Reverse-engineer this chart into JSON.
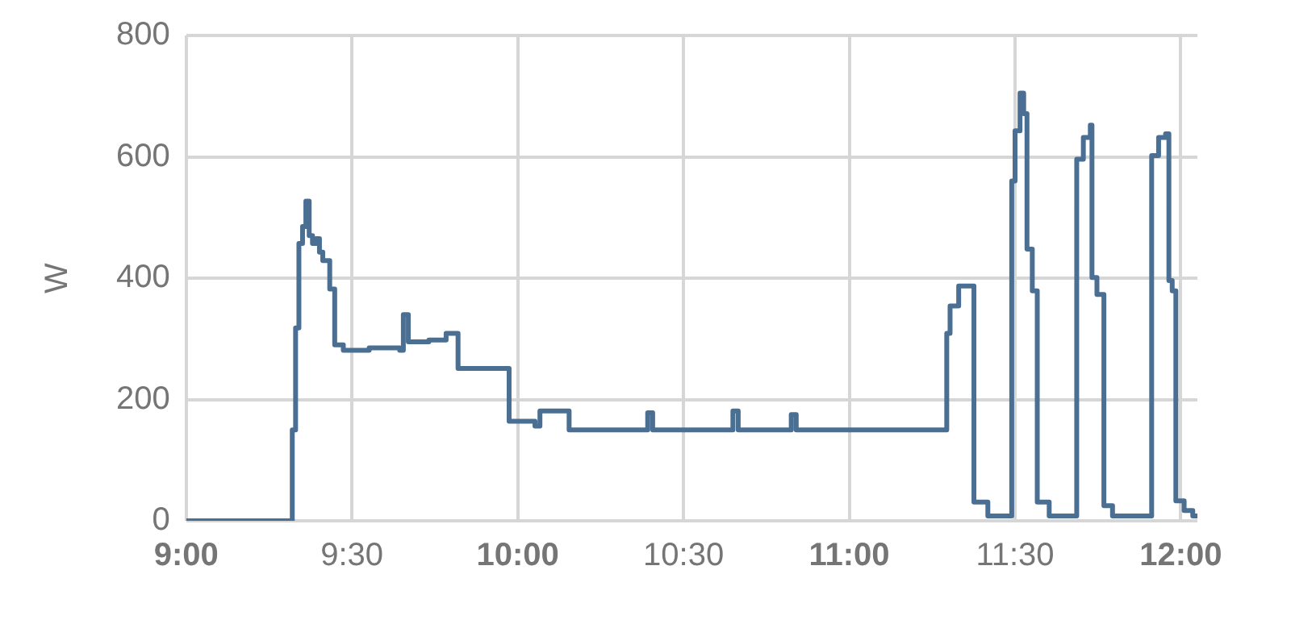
{
  "chart_data": {
    "type": "step",
    "ylabel": "W",
    "xlim": [
      9,
      12.05
    ],
    "ylim": [
      0,
      800
    ],
    "xticks": [
      {
        "value": 9,
        "label": "9:00"
      },
      {
        "value": 9.5,
        "label": "9:30"
      },
      {
        "value": 10,
        "label": "10:00"
      },
      {
        "value": 10.5,
        "label": "10:30"
      },
      {
        "value": 11,
        "label": "11:00"
      },
      {
        "value": 11.5,
        "label": "11:30"
      },
      {
        "value": 12,
        "label": "12:00"
      }
    ],
    "yticks": [
      0,
      200,
      400,
      600,
      800
    ],
    "grid": true,
    "legend": false,
    "marker": "none",
    "line_style": "solid",
    "x": [
      9.0,
      9.314,
      9.32,
      9.33,
      9.34,
      9.351,
      9.361,
      9.371,
      9.381,
      9.392,
      9.402,
      9.412,
      9.433,
      9.448,
      9.474,
      9.552,
      9.644,
      9.655,
      9.67,
      9.732,
      9.784,
      9.82,
      9.964,
      9.974,
      10.052,
      10.067,
      10.144,
      10.155,
      10.392,
      10.407,
      10.649,
      10.665,
      10.825,
      10.84,
      11.289,
      11.294,
      11.304,
      11.33,
      11.376,
      11.418,
      11.49,
      11.5,
      11.515,
      11.526,
      11.536,
      11.552,
      11.567,
      11.603,
      11.686,
      11.706,
      11.727,
      11.732,
      11.747,
      11.768,
      11.794,
      11.912,
      11.933,
      11.954,
      11.964,
      11.974,
      11.985,
      12.01,
      12.036,
      12.05
    ],
    "series": [
      {
        "color": "#4a6f93",
        "values": [
          0,
          0,
          150,
          318,
          457,
          485,
          527,
          470,
          457,
          465,
          443,
          429,
          382,
          290,
          281,
          285,
          281,
          340,
          295,
          298,
          309,
          251,
          251,
          164,
          156,
          181,
          181,
          150,
          178,
          150,
          181,
          150,
          175,
          150,
          150,
          309,
          354,
          387,
          31,
          8,
          560,
          643,
          705,
          671,
          448,
          379,
          31,
          8,
          596,
          632,
          652,
          401,
          373,
          25,
          8,
          602,
          632,
          638,
          396,
          379,
          33,
          17,
          8,
          8
        ]
      }
    ]
  }
}
